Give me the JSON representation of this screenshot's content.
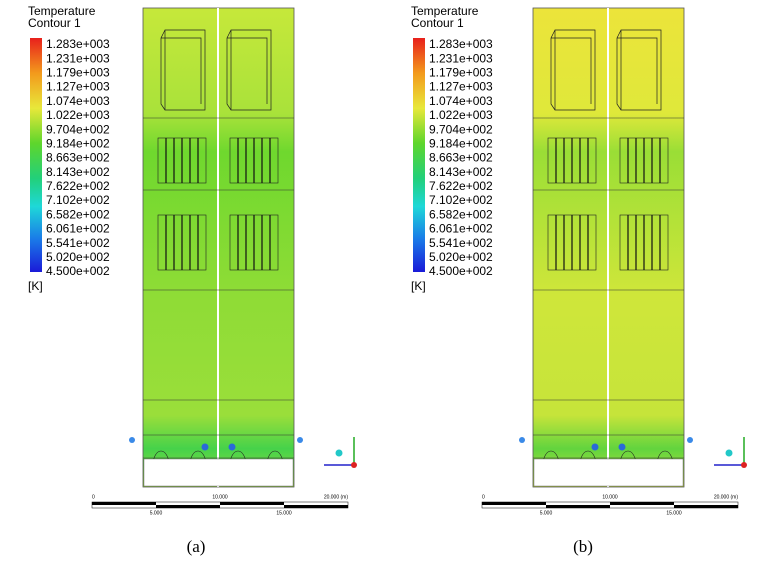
{
  "panels": [
    {
      "label": "(a)",
      "legend": {
        "title": "Temperature",
        "subtitle": "Contour 1",
        "ticks": [
          "1.283e+003",
          "1.231e+003",
          "1.179e+003",
          "1.127e+003",
          "1.074e+003",
          "1.022e+003",
          "9.704e+002",
          "9.184e+002",
          "8.663e+002",
          "8.143e+002",
          "7.622e+002",
          "7.102e+002",
          "6.582e+002",
          "6.061e+002",
          "5.541e+002",
          "5.020e+002",
          "4.500e+002"
        ],
        "unit": "[K]"
      },
      "scale": {
        "top": [
          "0",
          "10.000",
          "20.000 (m)"
        ],
        "bottom": [
          "5.000",
          "15.000"
        ]
      }
    },
    {
      "label": "(b)",
      "legend": {
        "title": "Temperature",
        "subtitle": "Contour 1",
        "ticks": [
          "1.283e+003",
          "1.231e+003",
          "1.179e+003",
          "1.127e+003",
          "1.074e+003",
          "1.022e+003",
          "9.704e+002",
          "9.184e+002",
          "8.663e+002",
          "8.143e+002",
          "7.622e+002",
          "7.102e+002",
          "6.582e+002",
          "6.061e+002",
          "5.541e+002",
          "5.020e+002",
          "4.500e+002"
        ],
        "unit": "[K]"
      },
      "scale": {
        "top": [
          "0",
          "10.000",
          "20.000 (m)"
        ],
        "bottom": [
          "5.000",
          "15.000"
        ]
      }
    }
  ]
}
